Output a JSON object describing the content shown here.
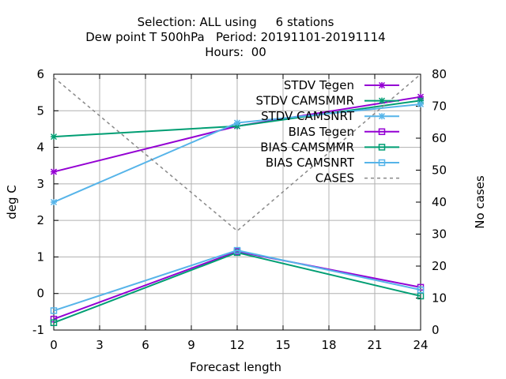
{
  "chart_data": {
    "type": "line",
    "title_lines": [
      "Selection: ALL using     6 stations",
      "Dew point T 500hPa   Period: 20191101-20191114",
      "Hours:  00"
    ],
    "xlabel": "Forecast length",
    "ylabel": "deg C",
    "y2label": "No cases",
    "xlim": [
      0,
      24
    ],
    "ylim": [
      -1,
      6
    ],
    "y2lim": [
      0,
      80
    ],
    "xticks": [
      0,
      3,
      6,
      9,
      12,
      15,
      18,
      21,
      24
    ],
    "yticks": [
      -1,
      0,
      1,
      2,
      3,
      4,
      5,
      6
    ],
    "y2ticks": [
      0,
      10,
      20,
      30,
      40,
      50,
      60,
      70,
      80
    ],
    "grid": true,
    "legend_position": "top-right",
    "x": [
      0,
      12,
      24
    ],
    "series": [
      {
        "name": "STDV Tegen",
        "axis": "y",
        "color": "#9400d3",
        "marker": "star",
        "dash": false,
        "values": [
          3.33,
          4.58,
          5.38
        ]
      },
      {
        "name": "STDV CAMSMMR",
        "axis": "y",
        "color": "#009e73",
        "marker": "star",
        "dash": false,
        "values": [
          4.29,
          4.58,
          5.28
        ]
      },
      {
        "name": "STDV CAMSNRT",
        "axis": "y",
        "color": "#56b4e9",
        "marker": "star",
        "dash": false,
        "values": [
          2.5,
          4.67,
          5.18
        ]
      },
      {
        "name": "BIAS Tegen",
        "axis": "y",
        "color": "#9400d3",
        "marker": "square",
        "dash": false,
        "values": [
          -0.7,
          1.15,
          0.17
        ]
      },
      {
        "name": "BIAS CAMSMMR",
        "axis": "y",
        "color": "#009e73",
        "marker": "square",
        "dash": false,
        "values": [
          -0.8,
          1.12,
          -0.07
        ]
      },
      {
        "name": "BIAS CAMSNRT",
        "axis": "y",
        "color": "#56b4e9",
        "marker": "square",
        "dash": false,
        "values": [
          -0.47,
          1.18,
          0.1
        ]
      },
      {
        "name": "CASES",
        "axis": "y2",
        "color": "#888888",
        "marker": "none",
        "dash": true,
        "values": [
          79,
          31,
          80
        ]
      }
    ]
  }
}
